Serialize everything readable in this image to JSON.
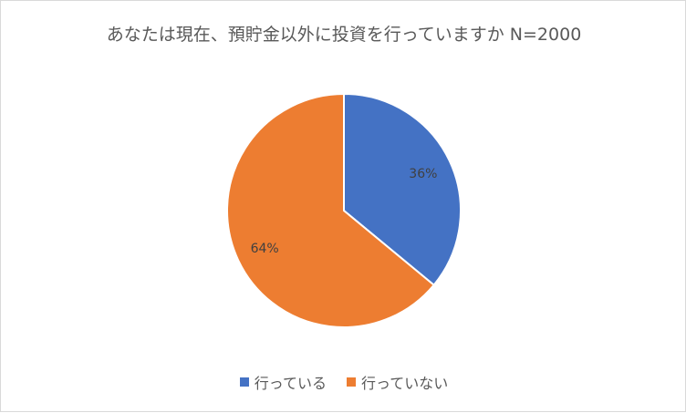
{
  "chart_data": {
    "type": "pie",
    "title": "あなたは現在、預貯金以外に投資を行っていますか N=2000",
    "categories": [
      "行っている",
      "行っていない"
    ],
    "values": [
      36,
      64
    ],
    "labels": [
      "36%",
      "64%"
    ],
    "colors": [
      "#4472c4",
      "#ed7d31"
    ],
    "legend_position": "bottom"
  }
}
